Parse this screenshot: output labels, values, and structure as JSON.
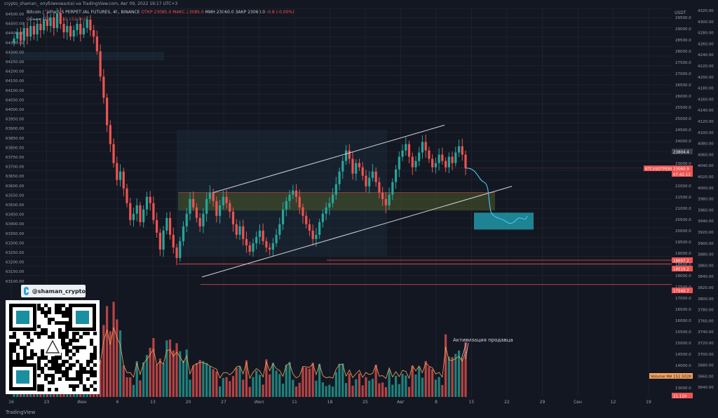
{
  "header": "crypto_shaman_ опубликовал(а) на TradingView.com, Авг 09, 2022 19:17 UTC+3",
  "symbol": {
    "name": "Bitcoin / TetherUS PERPETUAL FUTURES, 4h, BINANCE",
    "open": "ОТКР 23085.0",
    "high": "МАКС 23085.0",
    "low": "МИН 23060.0",
    "close": "ЗАКР 23060.0",
    "change": "-0.8 (-0.00%)"
  },
  "volume": {
    "label": "Объем (20)",
    "value": "21.110",
    "ma": "152.502K"
  },
  "currency": "USDT",
  "telegram": "@shaman_crypto",
  "annotation": "Активизация продавца",
  "footer": "TradingView",
  "colors": {
    "bg": "#131722",
    "up": "#26a69a",
    "down": "#ef5350",
    "channel": "#d1d4dc",
    "target": "#2196a6",
    "zone": "#4a5a2a"
  },
  "chart_data": {
    "type": "candlestick",
    "x_ticks": [
      "16",
      "23",
      "Июн",
      "6",
      "13",
      "20",
      "27",
      "Июл",
      "11",
      "18",
      "25",
      "Авг",
      "8",
      "15",
      "22",
      "29",
      "Сен",
      "12",
      "19"
    ],
    "left_axis": {
      "ticks": [
        "64500.00",
        "64450.00",
        "64400.00",
        "64350.00",
        "64300.00",
        "64250.00",
        "64200.00",
        "64150.00",
        "64100.00",
        "64050.00",
        "64000.00",
        "63950.00",
        "63900.00",
        "63850.00",
        "63800.00",
        "63750.00",
        "63700.00",
        "63650.00",
        "63600.00",
        "63550.00",
        "63500.00",
        "63450.00",
        "63400.00",
        "63350.00",
        "63300.00",
        "63250.00",
        "63200.00",
        "63150.00",
        "63100.00"
      ]
    },
    "right_axis_inner": {
      "ticks": [
        "29500.0",
        "29000.0",
        "28500.0",
        "28000.0",
        "27500.0",
        "27000.0",
        "26500.0",
        "26000.0",
        "25500.0",
        "25000.0",
        "24500.0",
        "24000.0",
        "23500.0",
        "23000.0",
        "22500.0",
        "22000.0",
        "21500.0",
        "21000.0",
        "20500.0",
        "20000.0",
        "19500.0",
        "19000.0",
        "18500.0",
        "18000.0",
        "17500.0",
        "17000.0",
        "16500.0",
        "16000.0",
        "15500.0",
        "15000.0",
        "14500.0",
        "14000.0",
        "13500.0",
        "13000.0"
      ]
    },
    "right_axis_outer": {
      "ticks": [
        "4320.00",
        "4300.00",
        "4280.00",
        "4260.00",
        "4240.00",
        "4220.00",
        "4200.00",
        "4180.00",
        "4160.00",
        "4140.00",
        "4120.00",
        "4100.00",
        "4080.00",
        "4060.00",
        "4040.00",
        "4020.00",
        "4000.00",
        "3980.00",
        "3960.00",
        "3940.00",
        "3920.00",
        "3900.00",
        "3880.00",
        "3860.00",
        "3840.00",
        "3820.00",
        "3800.00",
        "3780.00",
        "3760.00",
        "3740.00",
        "3720.00",
        "3700.00",
        "3680.00",
        "3660.00",
        "3640.00"
      ]
    },
    "price_labels": [
      {
        "text": "23804.4",
        "color": "#3a3e48"
      },
      {
        "text": "BTCUSDTPERP",
        "color": "#ef5350"
      },
      {
        "text": "23060.9",
        "color": "#ef5350"
      },
      {
        "text": "07:42:13",
        "color": "#ef5350"
      },
      {
        "text": "18697.2",
        "color": "#ef5350"
      },
      {
        "text": "18519.2",
        "color": "#ef5350"
      },
      {
        "text": "17540.7",
        "color": "#ef5350"
      },
      {
        "text": "Volume MA",
        "color": "#f5a35c"
      },
      {
        "text": "152.502K",
        "color": "#f5a35c"
      },
      {
        "text": "21.110",
        "color": "#ef5350"
      }
    ],
    "candles_close": [
      29200,
      29500,
      29100,
      29700,
      29300,
      29800,
      29400,
      29900,
      29600,
      30100,
      29800,
      30200,
      29700,
      30400,
      29900,
      29500,
      29800,
      29300,
      29600,
      29900,
      29400,
      29700,
      30100,
      29600,
      29300,
      28600,
      27400,
      26400,
      25100,
      24200,
      23300,
      22500,
      22900,
      22100,
      21400,
      20600,
      20900,
      21300,
      20500,
      21100,
      21700,
      21400,
      20600,
      20000,
      19200,
      20100,
      20700,
      19900,
      19300,
      18800,
      19600,
      20300,
      20900,
      21600,
      21200,
      20700,
      20300,
      20900,
      21600,
      21900,
      21500,
      20800,
      21300,
      21700,
      21400,
      21000,
      20400,
      19900,
      20300,
      19700,
      19400,
      19100,
      19500,
      19800,
      20100,
      19600,
      19300,
      19200,
      19500,
      19900,
      20400,
      21100,
      21500,
      21800,
      22000,
      21700,
      21200,
      20800,
      20400,
      20100,
      19700,
      19900,
      20500,
      20900,
      21200,
      21400,
      21800,
      22300,
      22900,
      23400,
      23900,
      23500,
      22800,
      23300,
      23100,
      22700,
      22200,
      22600,
      22900,
      22400,
      21900,
      21600,
      21300,
      21800,
      22400,
      23000,
      23600,
      23900,
      24200,
      23600,
      23100,
      23400,
      23800,
      24300,
      23900,
      23500,
      23100,
      23300,
      23700,
      23400,
      23100,
      23600,
      23300,
      23800,
      24100,
      23700,
      23060
    ],
    "projection": "decline to target zone ~20600-21000 then oscillation",
    "volume": {
      "series": "volume bars colored by candle direction with orange MA line"
    },
    "channel": {
      "upper": "rising line",
      "lower": "rising line",
      "zone": "support zone ~21300-21800"
    }
  }
}
